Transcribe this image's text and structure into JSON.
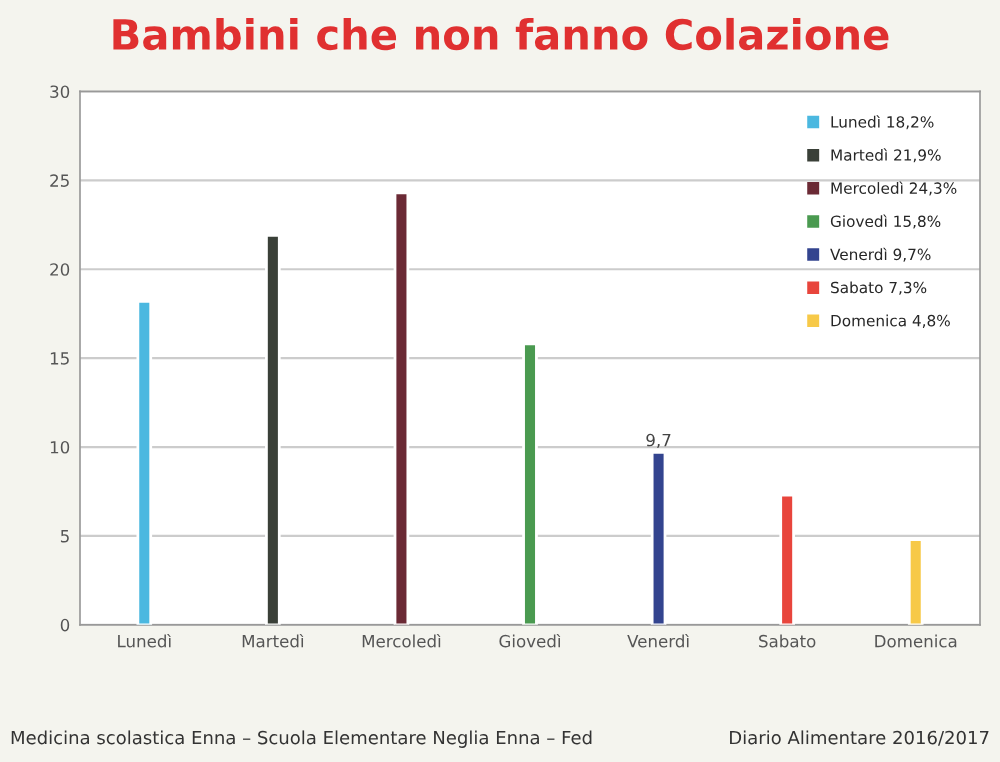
{
  "chart_data": {
    "type": "bar",
    "title": "Bambini che non fanno Colazione",
    "categories": [
      "Lunedì",
      "Martedì",
      "Mercoledì",
      "Giovedì",
      "Venerdì",
      "Sabato",
      "Domenica"
    ],
    "series": [
      {
        "name": "Lunedì 18,2%",
        "color": "#4bb8e0",
        "values": [
          18.2,
          null,
          null,
          null,
          null,
          null,
          null
        ]
      },
      {
        "name": "Martedì 21,9%",
        "color": "#3a4038",
        "values": [
          null,
          21.9,
          null,
          null,
          null,
          null,
          null
        ]
      },
      {
        "name": "Mercoledì 24,3%",
        "color": "#6b2a35",
        "values": [
          null,
          null,
          24.3,
          null,
          null,
          null,
          null
        ]
      },
      {
        "name": "Giovedì 15,8%",
        "color": "#4a9a50",
        "values": [
          null,
          null,
          null,
          15.8,
          null,
          null,
          null
        ]
      },
      {
        "name": "Venerdì 9,7%",
        "color": "#33448f",
        "values": [
          null,
          null,
          null,
          null,
          9.7,
          null,
          null
        ],
        "value_labels": [
          null,
          null,
          null,
          null,
          "9,7",
          null,
          null
        ]
      },
      {
        "name": "Sabato 7,3%",
        "color": "#e8453c",
        "values": [
          null,
          null,
          null,
          null,
          null,
          7.3,
          null
        ]
      },
      {
        "name": "Domenica 4,8%",
        "color": "#f7c948",
        "values": [
          null,
          null,
          null,
          null,
          null,
          null,
          4.8
        ]
      }
    ],
    "ylim": [
      0,
      30
    ],
    "yticks": [
      0,
      5,
      10,
      15,
      20,
      25,
      30
    ],
    "grid": "y",
    "legend": "top right",
    "annotations": [
      "Medicina scolastica Enna – Scuola Elementare Neglia Enna – Fed",
      "Diario Alimentare 2016/2017"
    ]
  }
}
